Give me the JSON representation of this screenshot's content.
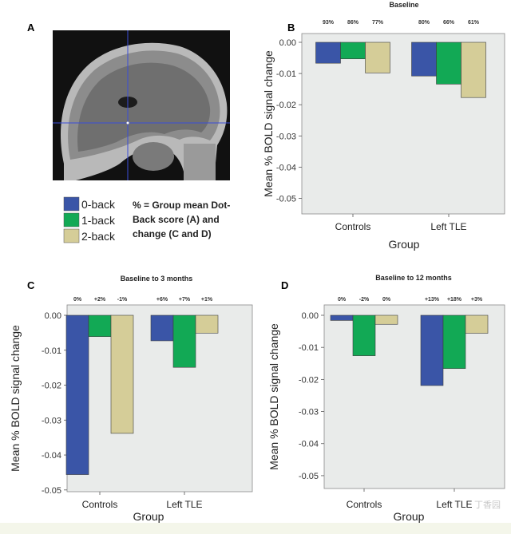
{
  "colors": {
    "zero_back": "#3a55a7",
    "one_back": "#12a955",
    "two_back": "#d5cd98",
    "plot_bg": "#e9ebea",
    "mri_bg": "#111111",
    "crosshair": "#3a4dd9"
  },
  "panel_labels": {
    "a": "A",
    "b": "B",
    "c": "C",
    "d": "D"
  },
  "legend": {
    "items": [
      {
        "label": "0-back",
        "color_key": "zero_back"
      },
      {
        "label": "1-back",
        "color_key": "one_back"
      },
      {
        "label": "2-back",
        "color_key": "two_back"
      }
    ],
    "note_lines": [
      "% = Group mean Dot-",
      "Back score (A) and",
      "change (C and D)"
    ]
  },
  "mri": {
    "icon": "sagittal-brain-mri-image"
  },
  "watermark": "丁香园",
  "chart_data": [
    {
      "id": "B",
      "type": "bar",
      "title": "Baseline",
      "xlabel": "Group",
      "ylabel": "Mean % BOLD signal change",
      "categories": [
        "Controls",
        "Left TLE"
      ],
      "ylim": [
        -0.055,
        0.0
      ],
      "yticks": [
        "0.00",
        "-0.01",
        "-0.02",
        "-0.03",
        "-0.04",
        "-0.05"
      ],
      "tick_values": [
        0,
        -0.01,
        -0.02,
        -0.03,
        -0.04,
        -0.05
      ],
      "series": [
        {
          "name": "0-back",
          "values": [
            -0.0067,
            -0.0108
          ]
        },
        {
          "name": "1-back",
          "values": [
            -0.0053,
            -0.0134
          ]
        },
        {
          "name": "2-back",
          "values": [
            -0.0098,
            -0.0177
          ]
        }
      ],
      "bar_labels": [
        [
          "93%",
          "86%",
          "77%"
        ],
        [
          "80%",
          "66%",
          "61%"
        ]
      ],
      "grid": false,
      "legend": "separate"
    },
    {
      "id": "C",
      "type": "bar",
      "title": "Baseline to 3 months",
      "xlabel": "Group",
      "ylabel": "Mean % BOLD signal change",
      "categories": [
        "Controls",
        "Left TLE"
      ],
      "ylim": [
        -0.0505,
        0.0
      ],
      "yticks": [
        "0.00",
        "-0.01",
        "-0.02",
        "-0.03",
        "-0.04",
        "-0.05"
      ],
      "tick_values": [
        0,
        -0.01,
        -0.02,
        -0.03,
        -0.04,
        -0.05
      ],
      "series": [
        {
          "name": "0-back",
          "values": [
            -0.0456,
            -0.0073
          ]
        },
        {
          "name": "1-back",
          "values": [
            -0.0061,
            -0.0149
          ]
        },
        {
          "name": "2-back",
          "values": [
            -0.0338,
            -0.0051
          ]
        }
      ],
      "bar_labels": [
        [
          "0%",
          "+2%",
          "-1%"
        ],
        [
          "+6%",
          "+7%",
          "+1%"
        ]
      ],
      "grid": false,
      "legend": "separate"
    },
    {
      "id": "D",
      "type": "bar",
      "title": "Baseline to 12  months",
      "xlabel": "Group",
      "ylabel": "Mean % BOLD signal change",
      "categories": [
        "Controls",
        "Left TLE"
      ],
      "ylim": [
        -0.054,
        0.0
      ],
      "yticks": [
        "0.00",
        "-0.01",
        "-0.02",
        "-0.03",
        "-0.04",
        "-0.05"
      ],
      "tick_values": [
        0,
        -0.01,
        -0.02,
        -0.03,
        -0.04,
        -0.05
      ],
      "series": [
        {
          "name": "0-back",
          "values": [
            -0.0016,
            -0.0219
          ]
        },
        {
          "name": "1-back",
          "values": [
            -0.0126,
            -0.0166
          ]
        },
        {
          "name": "2-back",
          "values": [
            -0.0028,
            -0.0056
          ]
        }
      ],
      "bar_labels": [
        [
          "0%",
          "-2%",
          "0%"
        ],
        [
          "+13%",
          "+18%",
          "+3%"
        ]
      ],
      "grid": false,
      "legend": "separate"
    }
  ]
}
